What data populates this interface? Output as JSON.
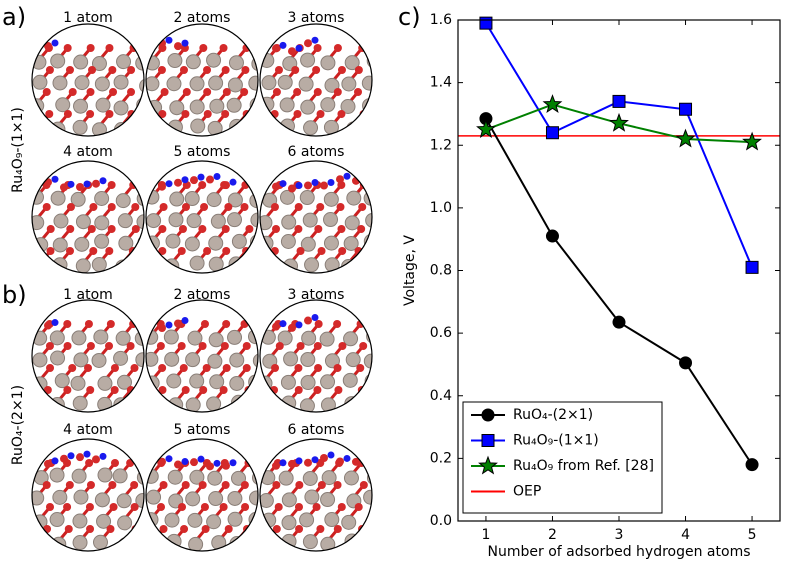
{
  "panels": {
    "a": {
      "label": "a)",
      "structure": "Ru₄O₉-(1×1)",
      "captions": [
        "1 atom",
        "2 atoms",
        "3 atoms",
        "4 atom",
        "5 atoms",
        "6 atoms"
      ]
    },
    "b": {
      "label": "b)",
      "structure": "RuO₄-(2×1)",
      "captions": [
        "1 atom",
        "2 atoms",
        "3 atoms",
        "4 atom",
        "5 atoms",
        "6 atoms"
      ]
    },
    "c": {
      "label": "c)"
    }
  },
  "chart_data": {
    "type": "line",
    "x_label": "Number of adsorbed hydrogen atoms",
    "y_label": "Voltage, V",
    "x": [
      1,
      2,
      3,
      4,
      5
    ],
    "series": [
      {
        "name": "RuO₄-(2×1)",
        "color": "#000000",
        "marker": "circle",
        "values": [
          1.285,
          0.91,
          0.635,
          0.505,
          0.18
        ]
      },
      {
        "name": "Ru₄O₉-(1×1)",
        "color": "#0000ff",
        "marker": "square",
        "values": [
          1.59,
          1.24,
          1.34,
          1.315,
          0.81
        ]
      },
      {
        "name": "Ru₄O₉ from Ref. [28]",
        "color": "#008000",
        "marker": "star",
        "values": [
          1.25,
          1.33,
          1.27,
          1.22,
          1.21
        ]
      }
    ],
    "reference_line": {
      "name": "OEP",
      "color": "#ff0000",
      "value": 1.23
    },
    "xlim": [
      0.58,
      5.42
    ],
    "ylim": [
      0,
      1.6
    ],
    "xticks": [
      1,
      2,
      3,
      4,
      5
    ],
    "yticks": [
      {
        "value": 0,
        "label": "0.0"
      },
      0.2,
      0.4,
      0.6,
      0.8,
      {
        "value": 1,
        "label": "1.0"
      },
      1.2,
      1.4,
      1.6
    ],
    "legend": "lower left"
  }
}
